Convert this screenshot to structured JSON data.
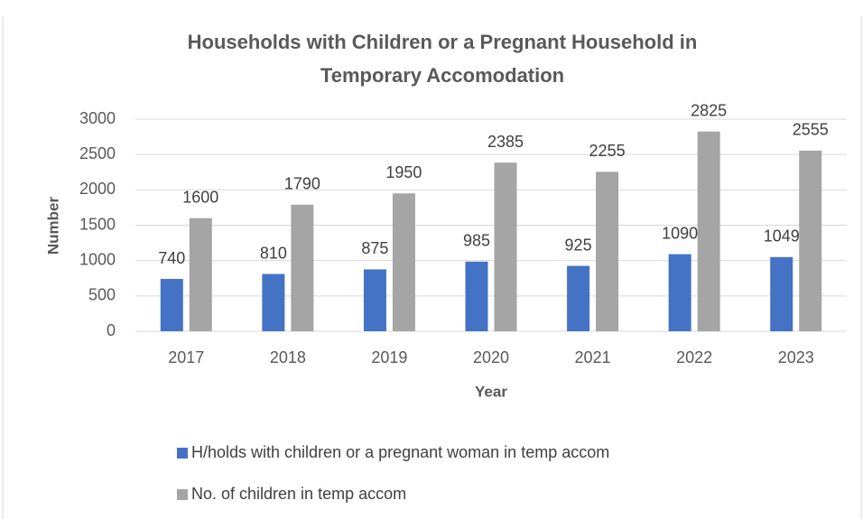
{
  "chart_data": {
    "type": "bar",
    "title": [
      "Households with Children or a Pregnant Household in",
      "Temporary Accomodation"
    ],
    "x_label": "Year",
    "y_label": "Number",
    "categories": [
      "2017",
      "2018",
      "2019",
      "2020",
      "2021",
      "2022",
      "2023"
    ],
    "series": [
      {
        "name": "H/holds with children or a pregnant woman in temp accom",
        "color": "#4472c4",
        "values": [
          740,
          810,
          875,
          985,
          925,
          1090,
          1049
        ]
      },
      {
        "name": "No. of children in temp accom",
        "color": "#a5a5a5",
        "values": [
          1600,
          1790,
          1950,
          2385,
          2255,
          2825,
          2555
        ]
      }
    ],
    "ylim": [
      0,
      3000
    ],
    "yticks": [
      0,
      500,
      1000,
      1500,
      2000,
      2500,
      3000
    ],
    "grid": true,
    "legend": "bottom"
  }
}
